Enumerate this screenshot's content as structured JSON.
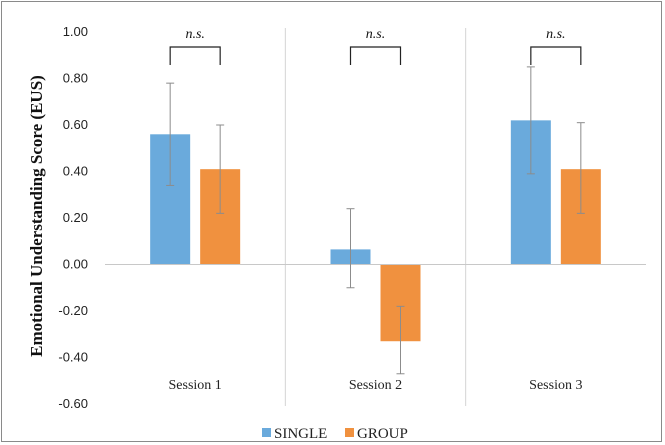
{
  "chart_data": {
    "type": "bar",
    "title": "",
    "xlabel": "",
    "ylabel": "Emotional Understanding Score (EUS)",
    "ylim": [
      -0.6,
      1.0
    ],
    "yticks": [
      1.0,
      0.8,
      0.6,
      0.4,
      0.2,
      0.0,
      -0.2,
      -0.4,
      -0.6
    ],
    "ytick_labels": [
      "1.00",
      "0.80",
      "0.60",
      "0.40",
      "0.20",
      "0.00",
      "-0.20",
      "-0.40",
      "-0.60"
    ],
    "categories": [
      "Session 1",
      "Session 2",
      "Session 3"
    ],
    "series": [
      {
        "name": "SINGLE",
        "color": "#6aaadc",
        "values": [
          0.56,
          0.065,
          0.62
        ],
        "err_low": [
          0.34,
          -0.1,
          0.39
        ],
        "err_high": [
          0.78,
          0.24,
          0.85
        ]
      },
      {
        "name": "GROUP",
        "color": "#f0913f",
        "values": [
          0.41,
          -0.33,
          0.41
        ],
        "err_low": [
          0.22,
          -0.47,
          0.22
        ],
        "err_high": [
          0.6,
          -0.18,
          0.61
        ]
      }
    ],
    "annotations": [
      "n.s.",
      "n.s.",
      "n.s."
    ],
    "grid": false,
    "legend_position": "bottom",
    "category_dividers": true
  }
}
